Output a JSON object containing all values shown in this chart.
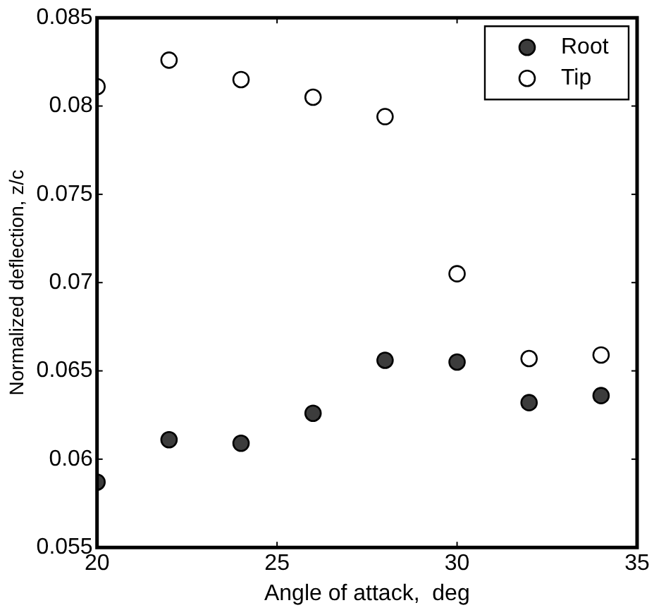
{
  "chart_data": {
    "type": "scatter",
    "xlabel": "Angle of attack,  deg",
    "ylabel": "Normalized deflection, z/c",
    "x": [
      20,
      22,
      24,
      26,
      28,
      30,
      32,
      34
    ],
    "series": [
      {
        "name": "Root",
        "color": "#3c3c3c",
        "values": [
          0.0587,
          0.0611,
          0.0609,
          0.0626,
          0.0656,
          0.0655,
          0.0632,
          0.0636
        ]
      },
      {
        "name": "Tip",
        "color": "#ffffff",
        "values": [
          0.0811,
          0.0826,
          0.0815,
          0.0805,
          0.0794,
          0.0705,
          0.0657,
          0.0659
        ]
      }
    ],
    "xlim": [
      20,
      35
    ],
    "xticks": [
      20,
      25,
      30,
      35
    ],
    "ylim": [
      0.055,
      0.085
    ],
    "yticks": [
      0.055,
      0.06,
      0.065,
      0.07,
      0.075,
      0.08,
      0.085
    ],
    "grid": false,
    "legend": "top right",
    "marker": "circle"
  }
}
